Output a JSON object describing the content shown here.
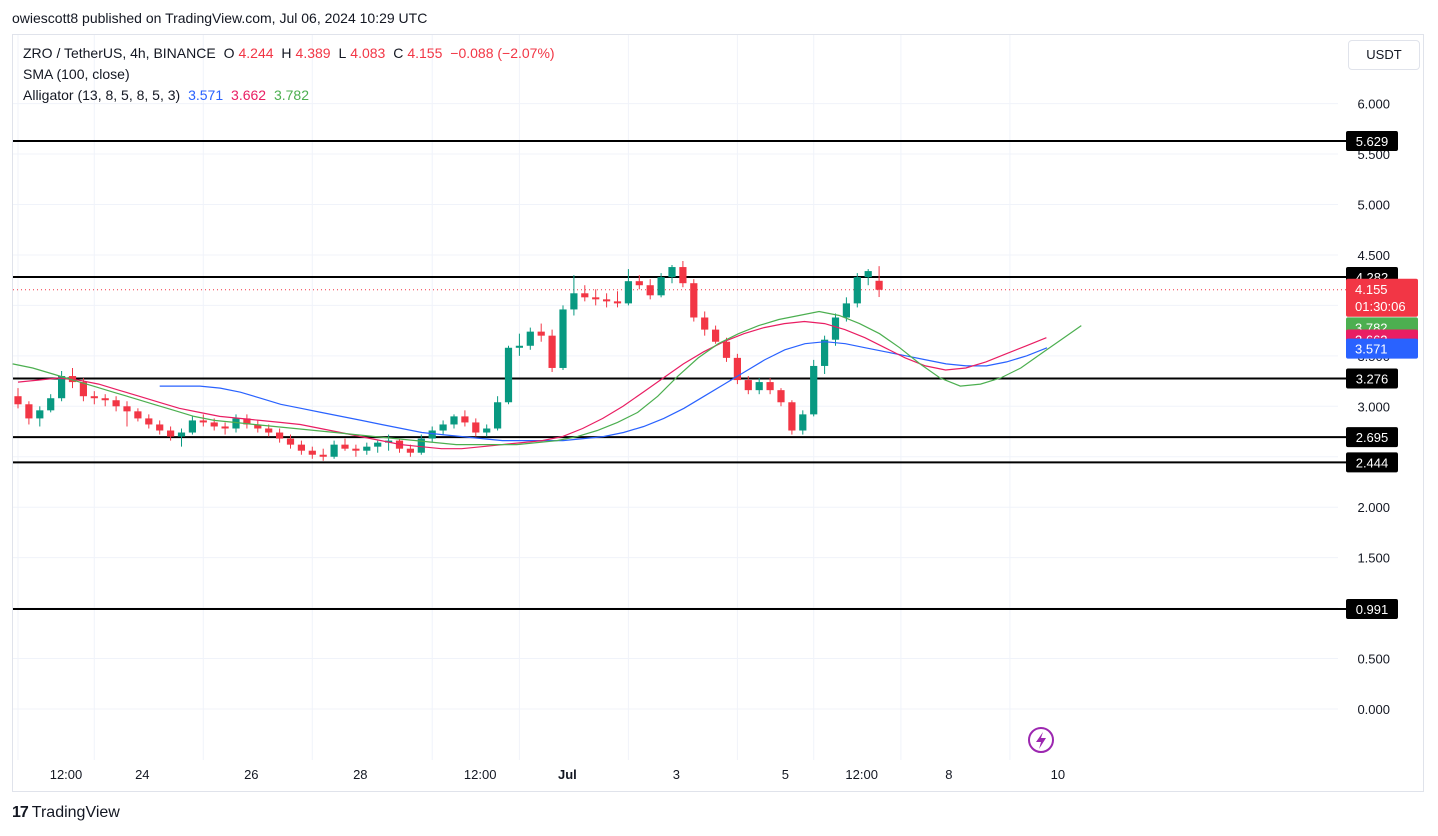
{
  "publisher_line": "owiescott8 published on TradingView.com, Jul 06, 2024 10:29 UTC",
  "legend": {
    "symbol": "ZRO / TetherUS, 4h, BINANCE",
    "o_label": "O",
    "o": "4.244",
    "h_label": "H",
    "h": "4.389",
    "l_label": "L",
    "l": "4.083",
    "c_label": "C",
    "c": "4.155",
    "change": "−0.088 (−2.07%)",
    "sma": "SMA (100, close)",
    "alligator": "Alligator (13, 8, 5, 8, 5, 3)",
    "alligator_jaw": "3.571",
    "alligator_teeth": "3.662",
    "alligator_lips": "3.782"
  },
  "currency_button": "USDT",
  "branding": "TradingView",
  "colors": {
    "up": "#089981",
    "down": "#f23645",
    "jaw": "#2962ff",
    "teeth": "#e91e63",
    "lips": "#4caf50",
    "level_line": "#000000"
  },
  "chart_data": {
    "type": "candlestick",
    "y_axis": {
      "min": -0.25,
      "max": 6.3,
      "ticks": [
        6.0,
        5.5,
        5.0,
        4.5,
        4.0,
        3.5,
        3.0,
        2.5,
        2.0,
        1.5,
        1.0,
        0.5,
        0.0
      ],
      "tick_labels": [
        "6.000",
        "5.500",
        "5.000",
        "4.500",
        "4.000",
        "3.500",
        "3.000",
        "2.500",
        "2.000",
        "1.500",
        "1.000",
        "0.500",
        "0.000"
      ]
    },
    "x_axis": {
      "tick_labels": [
        "12:00",
        "24",
        "26",
        "28",
        "12:00",
        "Jul",
        "3",
        "5",
        "12:00",
        "8",
        "10"
      ],
      "tick_bar_index": [
        0,
        7,
        17,
        27,
        38,
        46,
        56,
        66,
        73,
        81,
        91
      ]
    },
    "horizontal_levels": [
      {
        "value": 5.629,
        "label": "5.629"
      },
      {
        "value": 4.282,
        "label": "4.282"
      },
      {
        "value": 3.276,
        "label": "3.276"
      },
      {
        "value": 2.695,
        "label": "2.695"
      },
      {
        "value": 2.444,
        "label": "2.444"
      },
      {
        "value": 0.991,
        "label": "0.991"
      }
    ],
    "price_badges": [
      {
        "label": "4.155",
        "sub": "01:30:06",
        "value": 4.155,
        "color": "#f23645"
      },
      {
        "label": "3.782",
        "value": 3.782,
        "color": "#4caf50"
      },
      {
        "label": "3.662",
        "value": 3.662,
        "color": "#e91e63"
      },
      {
        "label": "3.571",
        "value": 3.571,
        "color": "#2962ff"
      }
    ],
    "candles": [
      [
        3.1,
        3.18,
        2.98,
        3.02
      ],
      [
        3.02,
        3.05,
        2.82,
        2.88
      ],
      [
        2.88,
        3.0,
        2.8,
        2.96
      ],
      [
        2.96,
        3.12,
        2.94,
        3.08
      ],
      [
        3.08,
        3.35,
        3.05,
        3.3
      ],
      [
        3.3,
        3.38,
        3.18,
        3.24
      ],
      [
        3.24,
        3.28,
        3.05,
        3.1
      ],
      [
        3.1,
        3.15,
        3.02,
        3.08
      ],
      [
        3.08,
        3.12,
        3.0,
        3.06
      ],
      [
        3.06,
        3.1,
        2.95,
        3.0
      ],
      [
        3.0,
        3.05,
        2.8,
        2.95
      ],
      [
        2.95,
        2.98,
        2.85,
        2.88
      ],
      [
        2.88,
        2.92,
        2.78,
        2.82
      ],
      [
        2.82,
        2.86,
        2.72,
        2.76
      ],
      [
        2.76,
        2.8,
        2.66,
        2.7
      ],
      [
        2.7,
        2.78,
        2.6,
        2.74
      ],
      [
        2.74,
        2.9,
        2.72,
        2.86
      ],
      [
        2.86,
        2.92,
        2.8,
        2.84
      ],
      [
        2.84,
        2.88,
        2.76,
        2.8
      ],
      [
        2.8,
        2.84,
        2.72,
        2.78
      ],
      [
        2.78,
        2.92,
        2.74,
        2.88
      ],
      [
        2.88,
        2.92,
        2.78,
        2.82
      ],
      [
        2.82,
        2.86,
        2.74,
        2.78
      ],
      [
        2.78,
        2.82,
        2.7,
        2.74
      ],
      [
        2.74,
        2.78,
        2.64,
        2.68
      ],
      [
        2.68,
        2.72,
        2.58,
        2.62
      ],
      [
        2.62,
        2.66,
        2.52,
        2.56
      ],
      [
        2.56,
        2.6,
        2.48,
        2.52
      ],
      [
        2.52,
        2.58,
        2.46,
        2.5
      ],
      [
        2.5,
        2.66,
        2.48,
        2.62
      ],
      [
        2.62,
        2.68,
        2.56,
        2.58
      ],
      [
        2.58,
        2.62,
        2.5,
        2.56
      ],
      [
        2.56,
        2.64,
        2.52,
        2.6
      ],
      [
        2.6,
        2.66,
        2.54,
        2.64
      ],
      [
        2.64,
        2.72,
        2.56,
        2.66
      ],
      [
        2.66,
        2.68,
        2.54,
        2.58
      ],
      [
        2.58,
        2.62,
        2.5,
        2.54
      ],
      [
        2.54,
        2.72,
        2.52,
        2.68
      ],
      [
        2.68,
        2.8,
        2.64,
        2.76
      ],
      [
        2.76,
        2.86,
        2.72,
        2.82
      ],
      [
        2.82,
        2.92,
        2.78,
        2.9
      ],
      [
        2.9,
        2.96,
        2.8,
        2.84
      ],
      [
        2.84,
        2.88,
        2.7,
        2.74
      ],
      [
        2.74,
        2.82,
        2.7,
        2.78
      ],
      [
        2.78,
        3.1,
        2.76,
        3.04
      ],
      [
        3.04,
        3.6,
        3.02,
        3.58
      ],
      [
        3.58,
        3.72,
        3.5,
        3.6
      ],
      [
        3.6,
        3.78,
        3.56,
        3.74
      ],
      [
        3.74,
        3.82,
        3.64,
        3.7
      ],
      [
        3.7,
        3.76,
        3.34,
        3.38
      ],
      [
        3.38,
        4.0,
        3.36,
        3.96
      ],
      [
        3.96,
        4.3,
        3.9,
        4.12
      ],
      [
        4.12,
        4.2,
        4.04,
        4.08
      ],
      [
        4.08,
        4.16,
        4.0,
        4.06
      ],
      [
        4.06,
        4.12,
        3.98,
        4.04
      ],
      [
        4.04,
        4.14,
        3.98,
        4.02
      ],
      [
        4.02,
        4.36,
        4.0,
        4.24
      ],
      [
        4.24,
        4.3,
        4.16,
        4.2
      ],
      [
        4.2,
        4.26,
        4.06,
        4.1
      ],
      [
        4.1,
        4.32,
        4.08,
        4.28
      ],
      [
        4.28,
        4.4,
        4.22,
        4.38
      ],
      [
        4.38,
        4.44,
        4.18,
        4.22
      ],
      [
        4.22,
        4.26,
        3.84,
        3.88
      ],
      [
        3.88,
        3.94,
        3.7,
        3.76
      ],
      [
        3.76,
        3.8,
        3.62,
        3.64
      ],
      [
        3.64,
        3.68,
        3.44,
        3.48
      ],
      [
        3.48,
        3.52,
        3.22,
        3.26
      ],
      [
        3.26,
        3.3,
        3.12,
        3.16
      ],
      [
        3.16,
        3.28,
        3.12,
        3.24
      ],
      [
        3.24,
        3.28,
        3.12,
        3.16
      ],
      [
        3.16,
        3.18,
        3.0,
        3.04
      ],
      [
        3.04,
        3.06,
        2.72,
        2.76
      ],
      [
        2.76,
        2.96,
        2.72,
        2.92
      ],
      [
        2.92,
        3.46,
        2.9,
        3.4
      ],
      [
        3.4,
        3.7,
        3.32,
        3.66
      ],
      [
        3.66,
        3.92,
        3.6,
        3.88
      ],
      [
        3.88,
        4.08,
        3.84,
        4.02
      ],
      [
        4.02,
        4.32,
        3.98,
        4.28
      ],
      [
        4.28,
        4.36,
        4.2,
        4.34
      ],
      [
        4.244,
        4.389,
        4.083,
        4.155
      ]
    ],
    "alligator_lips_series": [
      3.42,
      3.38,
      3.32,
      3.26,
      3.2,
      3.14,
      3.08,
      3.02,
      2.96,
      2.9,
      2.86,
      2.84,
      2.82,
      2.8,
      2.78,
      2.76,
      2.74,
      2.72,
      2.7,
      2.68,
      2.66,
      2.64,
      2.62,
      2.62,
      2.62,
      2.62,
      2.64,
      2.66,
      2.7,
      2.76,
      2.84,
      2.94,
      3.1,
      3.3,
      3.48,
      3.62,
      3.72,
      3.8,
      3.86,
      3.9,
      3.94,
      3.9,
      3.82,
      3.72,
      3.58,
      3.42,
      3.28,
      3.2,
      3.22,
      3.28,
      3.38,
      3.52,
      3.66,
      3.8
    ],
    "alligator_teeth_series": [
      3.24,
      3.26,
      3.28,
      3.26,
      3.22,
      3.16,
      3.1,
      3.04,
      2.98,
      2.94,
      2.9,
      2.88,
      2.86,
      2.84,
      2.82,
      2.78,
      2.74,
      2.7,
      2.66,
      2.62,
      2.6,
      2.58,
      2.58,
      2.6,
      2.62,
      2.64,
      2.66,
      2.7,
      2.78,
      2.88,
      3.0,
      3.14,
      3.28,
      3.42,
      3.54,
      3.64,
      3.72,
      3.78,
      3.82,
      3.84,
      3.82,
      3.76,
      3.68,
      3.58,
      3.48,
      3.4,
      3.36,
      3.38,
      3.44,
      3.52,
      3.6,
      3.68
    ],
    "alligator_jaw_series": [
      3.2,
      3.2,
      3.2,
      3.18,
      3.14,
      3.08,
      3.02,
      2.98,
      2.94,
      2.9,
      2.86,
      2.82,
      2.78,
      2.74,
      2.72,
      2.7,
      2.68,
      2.66,
      2.66,
      2.66,
      2.66,
      2.68,
      2.7,
      2.74,
      2.8,
      2.88,
      2.98,
      3.1,
      3.22,
      3.34,
      3.46,
      3.56,
      3.62,
      3.64,
      3.62,
      3.58,
      3.54,
      3.5,
      3.46,
      3.42,
      3.4,
      3.4,
      3.44,
      3.5,
      3.58
    ]
  }
}
